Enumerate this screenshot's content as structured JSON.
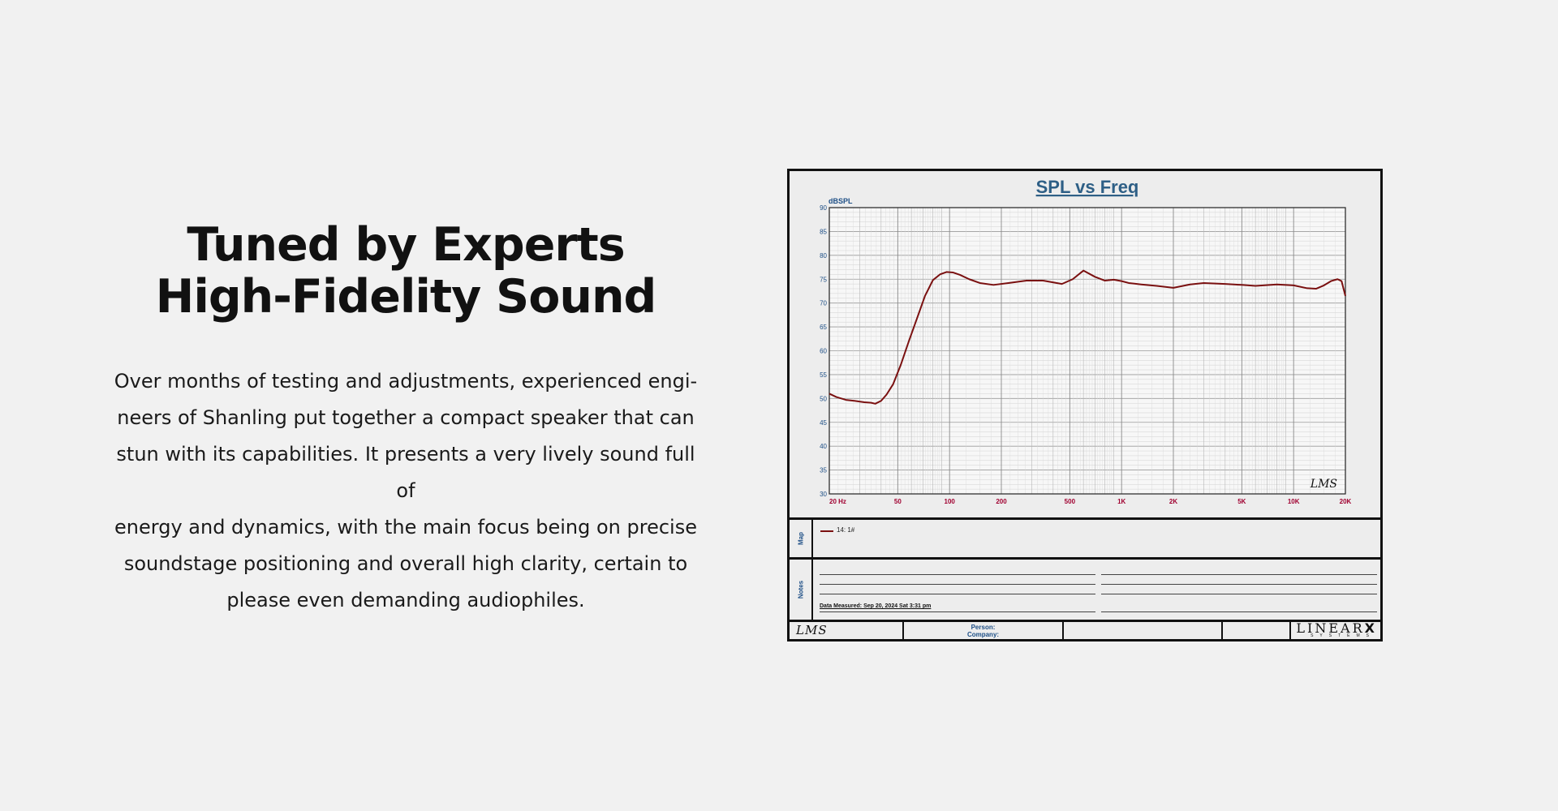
{
  "headline": {
    "line1": "Tuned by Experts",
    "line2": "High-Fidelity Sound"
  },
  "body": {
    "lines": [
      "Over months of testing and adjustments, experienced engi-",
      "neers of Shanling put together a compact speaker that can",
      "stun with its capabilities. It presents a very lively sound full of",
      "energy and dynamics, with the main focus being on precise",
      "soundstage positioning and overall high clarity, certain to",
      "please even demanding audiophiles."
    ]
  },
  "chart_data": {
    "type": "line",
    "title": "SPL vs Freq",
    "ylabel": "dBSPL",
    "xscale": "log",
    "xlim": [
      20,
      20000
    ],
    "ylim": [
      30,
      90
    ],
    "grid": true,
    "xticks": [
      {
        "value": 20,
        "label": "20  Hz"
      },
      {
        "value": 50,
        "label": "50"
      },
      {
        "value": 100,
        "label": "100"
      },
      {
        "value": 200,
        "label": "200"
      },
      {
        "value": 500,
        "label": "500"
      },
      {
        "value": 1000,
        "label": "1K"
      },
      {
        "value": 2000,
        "label": "2K"
      },
      {
        "value": 5000,
        "label": "5K"
      },
      {
        "value": 10000,
        "label": "10K"
      },
      {
        "value": 20000,
        "label": "20K"
      }
    ],
    "yticks": [
      30,
      35,
      40,
      45,
      50,
      55,
      60,
      65,
      70,
      75,
      80,
      85,
      90
    ],
    "series": [
      {
        "name": "14: 1#",
        "color": "#7a1010",
        "x": [
          20,
          22,
          25,
          28,
          32,
          35,
          37,
          40,
          43,
          47,
          52,
          58,
          65,
          72,
          80,
          88,
          96,
          105,
          115,
          130,
          150,
          180,
          220,
          280,
          350,
          450,
          520,
          600,
          700,
          800,
          900,
          1000,
          1100,
          1300,
          1600,
          2000,
          2500,
          3000,
          4000,
          5000,
          6000,
          8000,
          10000,
          12000,
          13500,
          15000,
          16500,
          18000,
          19000,
          20000
        ],
        "y": [
          51,
          50.3,
          49.7,
          49.5,
          49.2,
          49.1,
          48.9,
          49.5,
          50.8,
          53,
          57,
          62,
          67,
          71.5,
          74.8,
          76,
          76.5,
          76.4,
          75.9,
          75,
          74.2,
          73.8,
          74.2,
          74.7,
          74.7,
          74,
          75,
          76.8,
          75.5,
          74.7,
          74.9,
          74.6,
          74.2,
          73.9,
          73.6,
          73.2,
          73.9,
          74.2,
          74,
          73.8,
          73.6,
          73.9,
          73.7,
          73.1,
          73,
          73.7,
          74.6,
          75,
          74.6,
          71.5
        ]
      }
    ],
    "annotations": [
      "LMS"
    ]
  },
  "map": {
    "label": "Map",
    "legend_text": "14: 1#"
  },
  "notes": {
    "label": "Notes",
    "measured": "Data Measured: Sep 20, 2024  Sat  3:31 pm"
  },
  "footer": {
    "logo": "LMS",
    "person_label": "Person:",
    "company_label": "Company:",
    "brand": "LINEAR",
    "brand_mark": "X",
    "brand_sub": "SYSTEMS"
  },
  "colors": {
    "page_bg": "#f1f1f1",
    "sheet_bg": "#ededed",
    "curve": "#7a1010",
    "axis_text": "#1e4f86",
    "tick_x_text": "#a00030",
    "title_text": "#2e5f86"
  }
}
